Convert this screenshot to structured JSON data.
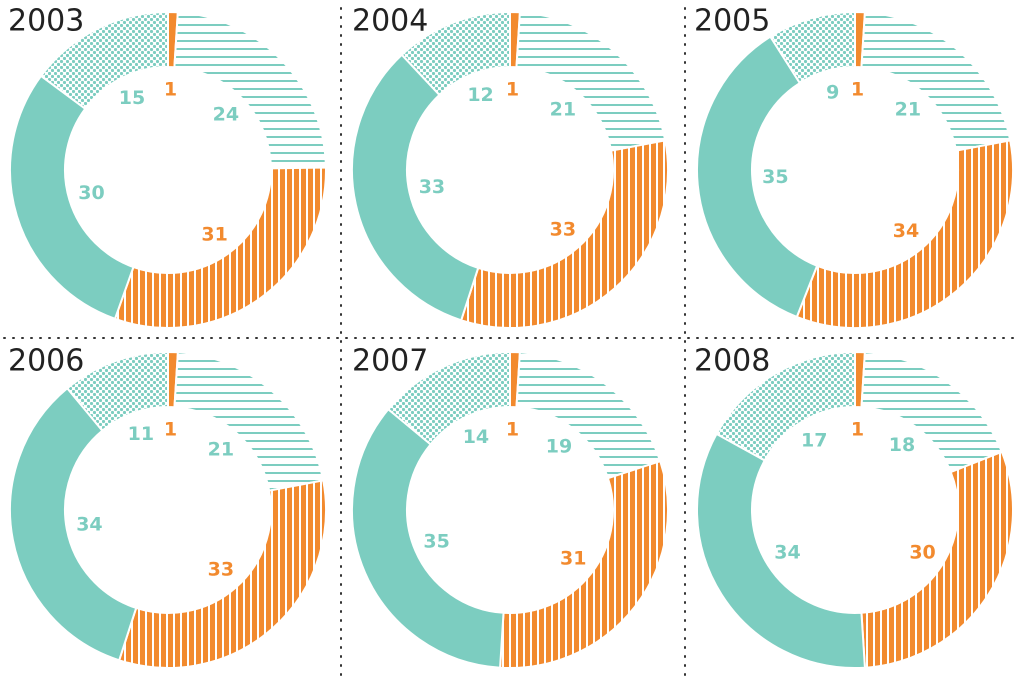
{
  "chart_data": [
    {
      "type": "donut",
      "title": "2003",
      "values": [
        1,
        24,
        31,
        30,
        15
      ]
    },
    {
      "type": "donut",
      "title": "2004",
      "values": [
        1,
        21,
        33,
        33,
        12
      ]
    },
    {
      "type": "donut",
      "title": "2005",
      "values": [
        1,
        21,
        34,
        35,
        9
      ]
    },
    {
      "type": "donut",
      "title": "2006",
      "values": [
        1,
        21,
        33,
        34,
        11
      ]
    },
    {
      "type": "donut",
      "title": "2007",
      "values": [
        1,
        19,
        31,
        35,
        14
      ]
    },
    {
      "type": "donut",
      "title": "2008",
      "values": [
        1,
        18,
        30,
        34,
        17
      ]
    }
  ],
  "colors": [
    "#f28a2e",
    "#7ccdc0",
    "#f28a2e",
    "#7ccdc0",
    "#7ccdc0"
  ],
  "patterns": [
    "solid",
    "hlines",
    "vlines",
    "solid",
    "dots"
  ]
}
